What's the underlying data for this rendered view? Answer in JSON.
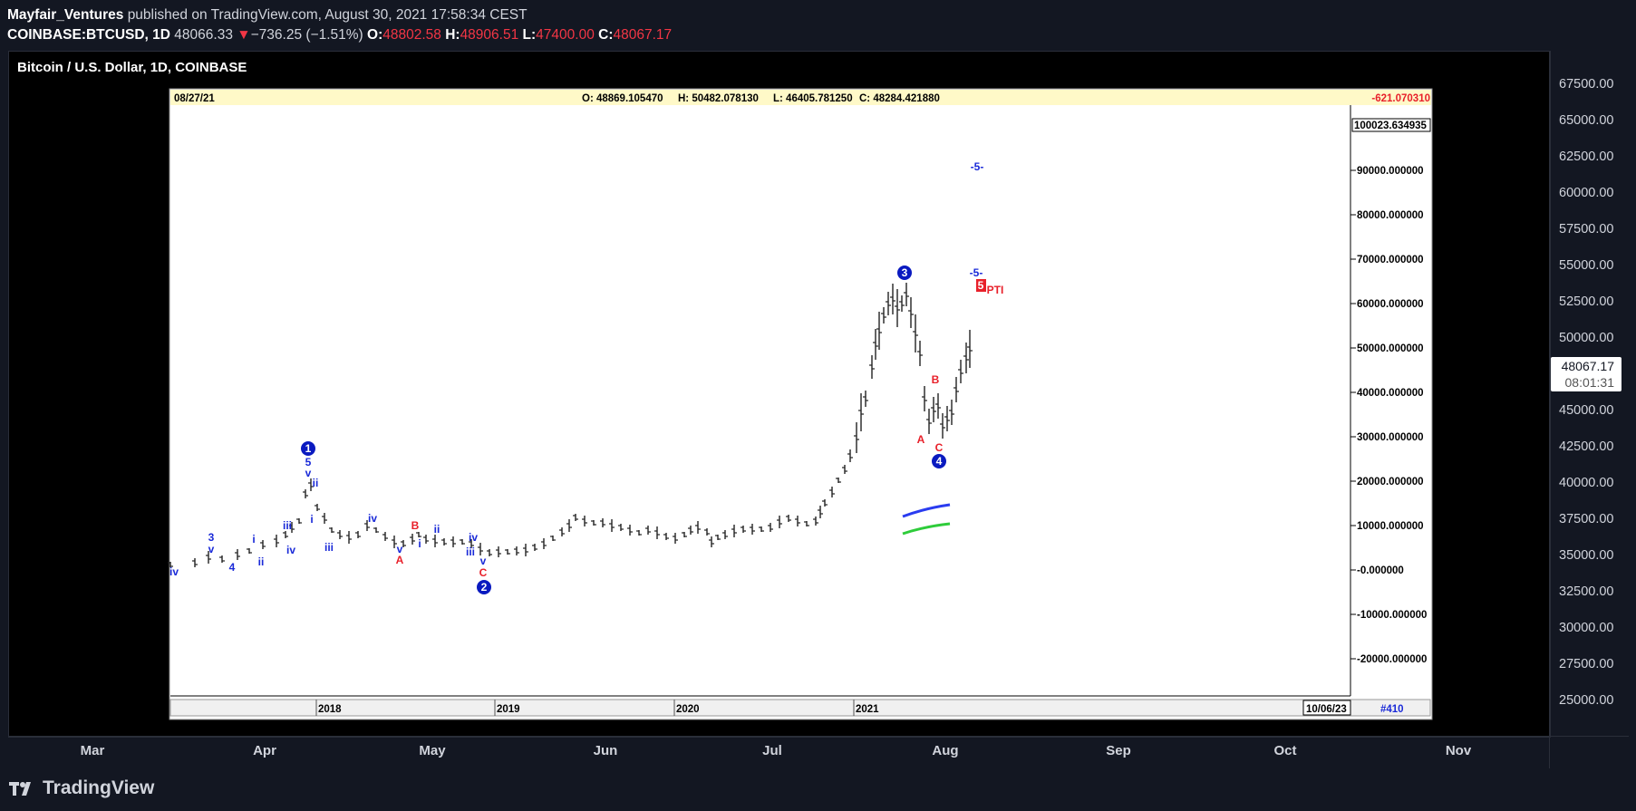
{
  "header": {
    "publisher": "Mayfair_Ventures",
    "published_text": "published on TradingView.com, August 30, 2021 17:58:34 CEST",
    "symbol": "COINBASE:BTCUSD, 1D",
    "last": "48066.33",
    "change_arrow": "▼",
    "change": "−736.25 (−1.51%)",
    "o_label": "O:",
    "o_value": "48802.58",
    "h_label": "H:",
    "h_value": "48906.51",
    "l_label": "L:",
    "l_value": "47400.00",
    "c_label": "C:",
    "c_value": "48067.17"
  },
  "chart_title": "Bitcoin / U.S. Dollar, 1D, COINBASE",
  "price_axis": [
    "67500.00",
    "65000.00",
    "62500.00",
    "60000.00",
    "57500.00",
    "55000.00",
    "52500.00",
    "50000.00",
    "45000.00",
    "42500.00",
    "40000.00",
    "37500.00",
    "35000.00",
    "32500.00",
    "30000.00",
    "27500.00",
    "25000.00"
  ],
  "time_axis": [
    "Mar",
    "Apr",
    "May",
    "Jun",
    "Jul",
    "Aug",
    "Sep",
    "Oct",
    "Nov"
  ],
  "price_label": {
    "value": "48067.17",
    "countdown": "08:01:31"
  },
  "footer": {
    "brand": "TradingView"
  },
  "colors": {
    "background": "#131722",
    "red": "#f23645",
    "wave_blue": "#1a2ad8",
    "wave_red": "#e8202a",
    "green_line": "#2ecc3a"
  },
  "inner_chart": {
    "date": "08/27/21",
    "o": "O: 48869.105470",
    "h": "H: 50482.078130",
    "l": "L: 46405.781250",
    "c": "C: 48284.421880",
    "change": "-621.070310",
    "top_value": "100023.634935",
    "scale": [
      "90000.000000",
      "80000.000000",
      "70000.000000",
      "60000.000000",
      "50000.000000",
      "40000.000000",
      "30000.000000",
      "20000.000000",
      "10000.000000",
      "-0.000000",
      "-10000.000000",
      "-20000.000000"
    ],
    "years": [
      "2018",
      "2019",
      "2020",
      "2021"
    ],
    "end_date": "10/06/23",
    "bar_count": "#410",
    "wave_labels": [
      {
        "t": "1",
        "kind": "circle"
      },
      {
        "t": "2",
        "kind": "circle"
      },
      {
        "t": "3",
        "kind": "circle"
      },
      {
        "t": "4",
        "kind": "circle"
      },
      {
        "t": "5",
        "kind": "blue"
      },
      {
        "t": "v",
        "kind": "blue"
      },
      {
        "t": "ii",
        "kind": "blue"
      },
      {
        "t": "i",
        "kind": "blue"
      },
      {
        "t": "iii",
        "kind": "blue"
      },
      {
        "t": "iv",
        "kind": "blue"
      },
      {
        "t": "3",
        "kind": "blue"
      },
      {
        "t": "4",
        "kind": "blue"
      },
      {
        "t": "A",
        "kind": "red"
      },
      {
        "t": "B",
        "kind": "red"
      },
      {
        "t": "C",
        "kind": "red"
      },
      {
        "t": "-5-",
        "kind": "blue"
      },
      {
        "t": "5",
        "kind": "redbox"
      },
      {
        "t": "PTI",
        "kind": "red"
      }
    ]
  }
}
